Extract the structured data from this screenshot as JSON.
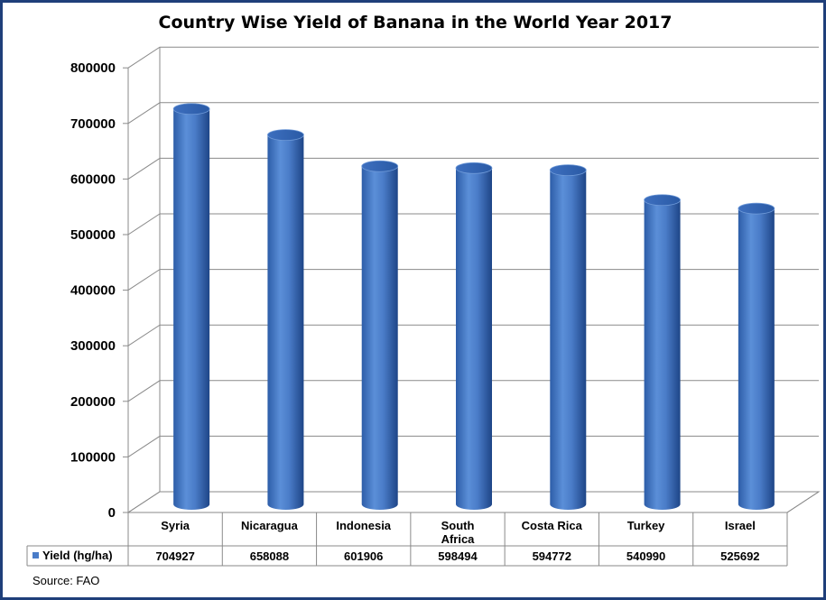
{
  "chart_data": {
    "type": "bar",
    "style": "3d-cylinder",
    "title": "Country Wise Yield of Banana in the World Year 2017",
    "categories": [
      [
        "Syria"
      ],
      [
        "Nicaragua"
      ],
      [
        "Indonesia"
      ],
      [
        "South",
        "Africa"
      ],
      [
        "Costa Rica"
      ],
      [
        "Turkey"
      ],
      [
        "Israel"
      ]
    ],
    "series": [
      {
        "name": "Yield (hg/ha)",
        "values": [
          704927,
          658088,
          601906,
          598494,
          594772,
          540990,
          525692
        ],
        "color": "#4a7cc8"
      }
    ],
    "yticks": [
      "0",
      "100000",
      "200000",
      "300000",
      "400000",
      "500000",
      "600000",
      "700000",
      "800000"
    ],
    "ylim": [
      0,
      800000
    ],
    "grid": true,
    "data_table": true,
    "source": "Source: FAO"
  }
}
